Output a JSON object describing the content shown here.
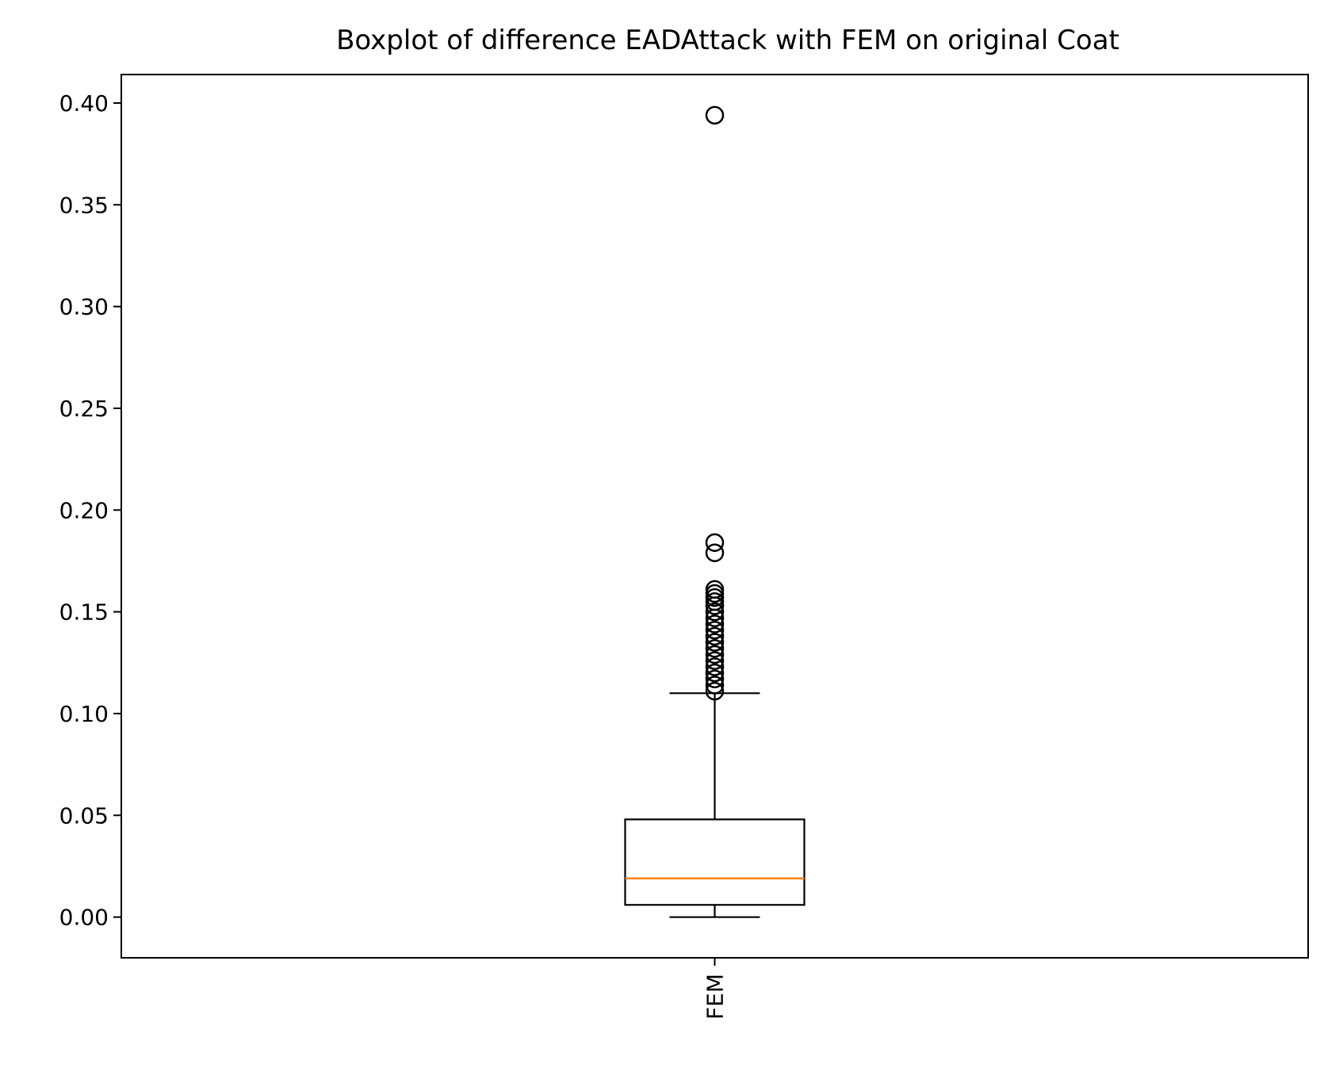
{
  "chart_data": {
    "type": "box",
    "title": "Boxplot of difference EADAttack with FEM on original Coat",
    "xlabel": "",
    "ylabel": "",
    "categories": [
      "FEM"
    ],
    "ylim": [
      -0.02,
      0.414
    ],
    "yticks": [
      "0.00",
      "0.05",
      "0.10",
      "0.15",
      "0.20",
      "0.25",
      "0.30",
      "0.35",
      "0.40"
    ],
    "grid": false,
    "legend": "none",
    "series": [
      {
        "category": "FEM",
        "whisker_low": 0.0,
        "q1": 0.006,
        "median": 0.019,
        "q3": 0.048,
        "whisker_high": 0.11,
        "outliers": [
          0.394,
          0.184,
          0.179,
          0.161,
          0.159,
          0.157,
          0.155,
          0.153,
          0.15,
          0.147,
          0.144,
          0.141,
          0.138,
          0.135,
          0.132,
          0.129,
          0.126,
          0.123,
          0.12,
          0.117,
          0.114,
          0.111
        ]
      }
    ],
    "colors": {
      "box": "#000000",
      "median": "#ff7f0e",
      "outlier": "#000000"
    }
  }
}
